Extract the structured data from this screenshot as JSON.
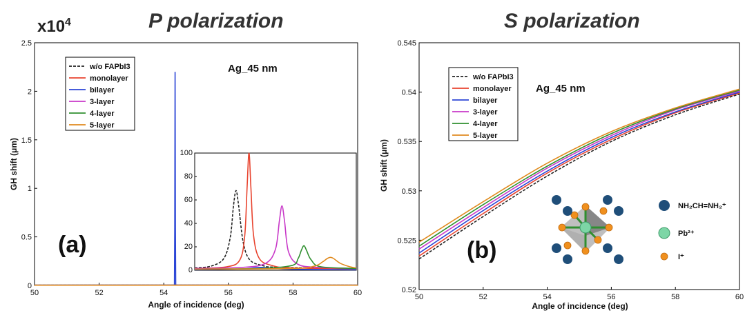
{
  "chart_data": [
    {
      "type": "line",
      "panel": "a",
      "title": "P polarization",
      "xlabel": "Angle of incidence (deg)",
      "ylabel": "GH shift (μm)",
      "multiplier": "x10",
      "multiplier_exp": "4",
      "xlim": [
        50,
        60
      ],
      "ylim": [
        0,
        2.5
      ],
      "x_ticks": [
        "50",
        "52",
        "54",
        "56",
        "58",
        "60"
      ],
      "y_ticks": [
        "0",
        "0.5",
        "1",
        "1.5",
        "2",
        "2.5"
      ],
      "annotation": "Ag_45 nm",
      "panel_label": "(a)",
      "legend_placement": "top-left",
      "series": [
        {
          "name": "w/o FAPbI3",
          "color": "#222222",
          "dash": true,
          "x": [
            50,
            60
          ],
          "y": [
            0.002,
            0.002
          ]
        },
        {
          "name": "monolayer",
          "color": "#e8432e",
          "x": [
            50,
            60
          ],
          "y": [
            0.002,
            0.002
          ]
        },
        {
          "name": "bilayer",
          "color": "#2b45d6",
          "x": [
            50,
            54.33,
            54.34,
            54.35,
            54.36,
            54.37,
            60
          ],
          "y": [
            0.002,
            0.004,
            0.6,
            2.2,
            0.6,
            0.004,
            0.002
          ]
        },
        {
          "name": "3-layer",
          "color": "#c838c8",
          "x": [
            50,
            60
          ],
          "y": [
            0.002,
            0.002
          ]
        },
        {
          "name": "4-layer",
          "color": "#2f8f2f",
          "x": [
            50,
            60
          ],
          "y": [
            0.002,
            0.002
          ]
        },
        {
          "name": "5-layer",
          "color": "#e08a1e",
          "x": [
            50,
            60
          ],
          "y": [
            0.002,
            0.002
          ]
        }
      ],
      "inset": {
        "xlim": [
          55,
          60
        ],
        "ylim": [
          0,
          100
        ],
        "y_ticks": [
          "0",
          "20",
          "40",
          "60",
          "80",
          "100"
        ],
        "series": [
          {
            "name": "w/o FAPbI3",
            "color": "#222222",
            "dash": true,
            "x": [
              55,
              55.5,
              55.9,
              56.1,
              56.2,
              56.28,
              56.36,
              56.5,
              56.7,
              57.1,
              57.6,
              60
            ],
            "y": [
              2,
              3.5,
              10,
              28,
              55,
              68,
              55,
              24,
              9,
              4,
              2.5,
              1.5
            ]
          },
          {
            "name": "monolayer",
            "color": "#e8432e",
            "x": [
              55,
              56,
              56.4,
              56.55,
              56.62,
              56.68,
              56.74,
              56.82,
              57,
              57.4,
              58,
              60
            ],
            "y": [
              1.5,
              3,
              9,
              30,
              70,
              100,
              70,
              30,
              10,
              4,
              2,
              1.2
            ]
          },
          {
            "name": "bilayer",
            "color": "#2b45d6",
            "x": [
              55,
              56.5,
              57,
              57.5,
              58,
              60
            ],
            "y": [
              0.5,
              1.2,
              2.5,
              1.5,
              0.8,
              0.4
            ]
          },
          {
            "name": "3-layer",
            "color": "#c838c8",
            "x": [
              55,
              56.5,
              57.2,
              57.5,
              57.62,
              57.7,
              57.78,
              57.9,
              58.2,
              58.8,
              60
            ],
            "y": [
              1.5,
              2.5,
              6,
              18,
              42,
              55,
              42,
              16,
              5,
              2.5,
              1.5
            ]
          },
          {
            "name": "4-layer",
            "color": "#2f8f2f",
            "x": [
              55,
              57,
              58,
              58.2,
              58.3,
              58.38,
              58.46,
              58.6,
              58.9,
              60
            ],
            "y": [
              1,
              1.5,
              4,
              10,
              17,
              21,
              17,
              9,
              3,
              1.5
            ]
          },
          {
            "name": "5-layer",
            "color": "#e08a1e",
            "x": [
              55,
              58,
              58.7,
              58.95,
              59.1,
              59.2,
              59.3,
              59.5,
              59.8,
              60
            ],
            "y": [
              1,
              1.5,
              3.5,
              7,
              10,
              11,
              10,
              6,
              3,
              2
            ]
          }
        ]
      }
    },
    {
      "type": "line",
      "panel": "b",
      "title": "S polarization",
      "xlabel": "Angle of incidence (deg)",
      "ylabel": "GH shift (μm)",
      "xlim": [
        50,
        60
      ],
      "ylim": [
        0.52,
        0.545
      ],
      "x_ticks": [
        "50",
        "52",
        "54",
        "56",
        "58",
        "60"
      ],
      "y_ticks": [
        "0.52",
        "0.525",
        "0.53",
        "0.535",
        "0.54",
        "0.545"
      ],
      "annotation": "Ag_45 nm",
      "panel_label": "(b)",
      "legend_placement": "top-left",
      "series": [
        {
          "name": "w/o FAPbI3",
          "color": "#222222",
          "dash": true,
          "x": [
            50,
            52,
            54,
            56,
            58,
            60
          ],
          "y": [
            0.5231,
            0.5274,
            0.5315,
            0.535,
            0.5377,
            0.5398
          ]
        },
        {
          "name": "monolayer",
          "color": "#e8432e",
          "x": [
            50,
            52,
            54,
            56,
            58,
            60
          ],
          "y": [
            0.5234,
            0.5277,
            0.5318,
            0.5352,
            0.5379,
            0.5399
          ]
        },
        {
          "name": "bilayer",
          "color": "#2b45d6",
          "x": [
            50,
            52,
            54,
            56,
            58,
            60
          ],
          "y": [
            0.5237,
            0.528,
            0.532,
            0.5354,
            0.538,
            0.54
          ]
        },
        {
          "name": "3-layer",
          "color": "#c838c8",
          "x": [
            50,
            52,
            54,
            56,
            58,
            60
          ],
          "y": [
            0.5241,
            0.5283,
            0.5323,
            0.5356,
            0.5382,
            0.5401
          ]
        },
        {
          "name": "4-layer",
          "color": "#2f8f2f",
          "x": [
            50,
            52,
            54,
            56,
            58,
            60
          ],
          "y": [
            0.5244,
            0.5286,
            0.5325,
            0.5358,
            0.5383,
            0.5402
          ]
        },
        {
          "name": "5-layer",
          "color": "#e08a1e",
          "x": [
            50,
            52,
            54,
            56,
            58,
            60
          ],
          "y": [
            0.5248,
            0.5289,
            0.5328,
            0.536,
            0.5384,
            0.5403
          ]
        }
      ],
      "structure_legend": [
        {
          "label": "NH₂CH=NH₂⁺",
          "color": "#1f4e79"
        },
        {
          "label": "Pb²⁺",
          "color": "#7dd6a6"
        },
        {
          "label": "I⁺",
          "color": "#f0901e"
        }
      ]
    }
  ]
}
